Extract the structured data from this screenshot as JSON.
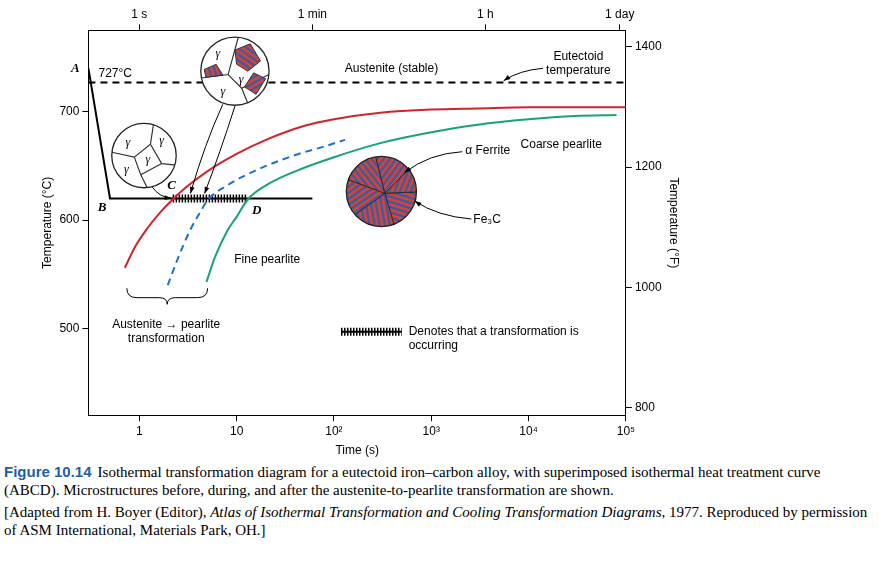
{
  "chart_data": {
    "type": "line",
    "xlabel": "Time (s)",
    "ylabel": "Temperature (°C)",
    "y2label": "Temperature (°F)",
    "log": "x",
    "grid": false,
    "xlim": [
      0.3,
      100000
    ],
    "xticks": [
      1,
      10,
      {
        "value": 100,
        "label": "10²"
      },
      {
        "value": 1000,
        "label": "10³"
      },
      {
        "value": 10000,
        "label": "10⁴"
      },
      {
        "value": 100000,
        "label": "10⁵"
      }
    ],
    "x2lim": [
      0.3,
      100000
    ],
    "x2ticks": [
      {
        "value": 1,
        "label": "1 s"
      },
      {
        "value": 60,
        "label": "1 min"
      },
      {
        "value": 3600,
        "label": "1 h"
      },
      {
        "value": 86400,
        "label": "1 day"
      }
    ],
    "ylim": [
      420,
      775
    ],
    "yticks": [
      500,
      600,
      700
    ],
    "y2lim": [
      788,
      1427
    ],
    "y2ticks": [
      800,
      1000,
      1200,
      1400
    ],
    "series": [
      {
        "color": "#d2232a",
        "line_style": "solid",
        "x": [
          0.71,
          0.9,
          1.2,
          1.6,
          2.2,
          3,
          5,
          10,
          20,
          50,
          100,
          300,
          1000,
          3000,
          10000,
          100000
        ],
        "values": [
          556,
          575,
          592,
          606,
          619,
          630,
          645,
          661,
          674,
          687,
          693,
          699,
          702,
          703,
          704,
          704
        ]
      },
      {
        "color": "#1f6fd1",
        "line_style": "dashed",
        "x": [
          1.96,
          2.5,
          3.3,
          4.2,
          5.1,
          8,
          15,
          40,
          80,
          130
        ],
        "values": [
          540,
          565,
          590,
          607,
          619,
          632,
          645,
          660,
          668,
          674
        ]
      },
      {
        "color": "#17a27a",
        "line_style": "solid",
        "x": [
          4.9,
          6,
          8,
          10,
          13,
          20,
          40,
          100,
          300,
          1000,
          3000,
          10000,
          30000,
          80000
        ],
        "values": [
          543,
          566,
          590,
          603,
          619,
          632,
          645,
          658,
          671,
          681,
          688,
          693,
          696,
          697
        ]
      },
      {
        "color": "#000000",
        "line_style": "dashed",
        "x": [
          0.3,
          100000
        ],
        "values": [
          727,
          727
        ]
      },
      {
        "color": "#000000",
        "line_style": "solid",
        "x": [
          0.3,
          0.5,
          60
        ],
        "values": [
          740,
          620,
          620
        ],
        "point_labels": [
          "A",
          "B",
          null
        ]
      },
      {
        "color": "#000000",
        "line_style": "hatched",
        "x": [
          2.2,
          13
        ],
        "values": [
          620,
          620
        ],
        "point_labels": [
          "C",
          "D"
        ]
      }
    ],
    "annotations": {
      "eutectoid_value": "727°C",
      "austenite_stable": "Austenite (stable)",
      "eutectoid_label": "Eutectoid temperature",
      "ferrite": "α Ferrite",
      "cementite": "Fe₃C",
      "coarse_pearlite": "Coarse pearlite",
      "fine_pearlite": "Fine pearlite",
      "transformation": "Austenite → pearlite transformation",
      "hatch_legend": "Denotes that a transformation is occurring",
      "grain": "γ"
    },
    "caption": {
      "label": "Figure 10.14",
      "text": "Isothermal transformation diagram for a eutectoid iron–carbon alloy, with superimposed isothermal heat treatment curve (ABCD). Microstructures before, during, and after the austenite-to-pearlite transformation are shown.",
      "source": [
        "[Adapted from H. Boyer (Editor), ",
        "Atlas of Isothermal Transformation and Cooling Transformation Diagrams",
        ", 1977. Reproduced by permission of ASM International, Materials Park, OH.]"
      ]
    }
  }
}
